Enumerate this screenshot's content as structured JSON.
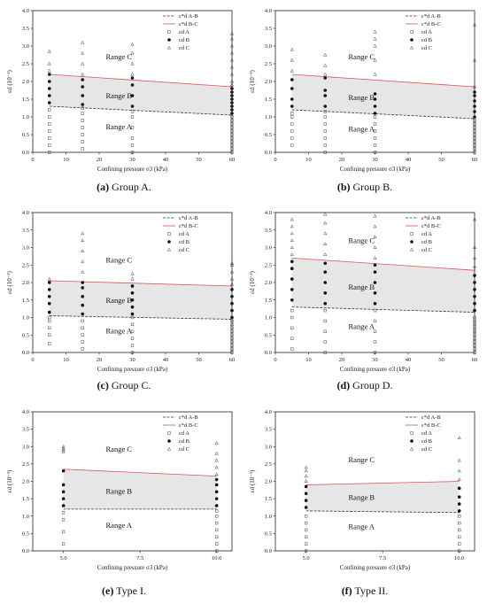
{
  "figure": {
    "panels": [
      {
        "caption_letter": "(a)",
        "caption_text": "Group A.",
        "chart_data": {
          "type": "scatter",
          "xlabel": "Confining pressure σ3 (kPa)",
          "ylabel": "εd (10⁻³)",
          "xlim": [
            0,
            60
          ],
          "ylim": [
            0,
            4.0
          ],
          "xticks": [
            "0",
            "10",
            "20",
            "30",
            "40",
            "50",
            "60"
          ],
          "yticks": [
            "0.0",
            "0.5",
            "1.0",
            "1.5",
            "2.0",
            "2.5",
            "3.0",
            "3.5",
            "4.0"
          ],
          "regions": [
            "Range A",
            "Range B",
            "Range C"
          ],
          "legend": [
            "ε*d A-B",
            "ε*d B-C",
            "εd A",
            "εd B",
            "εd C"
          ],
          "threshold_AB": {
            "x": [
              5,
              60
            ],
            "y": [
              1.3,
              1.05
            ]
          },
          "threshold_BC": {
            "x": [
              5,
              60
            ],
            "y": [
              2.2,
              1.85
            ]
          },
          "points": [
            {
              "x": 5,
              "A": [
                0.0,
                0.2,
                0.4,
                0.6,
                0.8,
                1.0,
                1.2
              ],
              "B": [
                1.4,
                1.6,
                1.8,
                2.0,
                2.2
              ],
              "C": [
                2.3,
                2.5,
                2.85
              ]
            },
            {
              "x": 15,
              "A": [
                0.1,
                0.3,
                0.5,
                0.7,
                0.9,
                1.1,
                1.25
              ],
              "B": [
                1.35,
                1.6,
                1.85,
                2.05
              ],
              "C": [
                2.2,
                2.5,
                2.8,
                3.1
              ]
            },
            {
              "x": 30,
              "A": [
                0.0,
                0.2,
                0.4,
                0.7,
                1.0,
                1.15
              ],
              "B": [
                1.3,
                1.6,
                1.9,
                2.1
              ],
              "C": [
                2.2,
                2.5,
                2.8,
                3.05
              ]
            },
            {
              "x": 60,
              "A": [
                0.0,
                0.1,
                0.2,
                0.3,
                0.4,
                0.5,
                0.6,
                0.7,
                0.8,
                0.9,
                1.0
              ],
              "B": [
                1.1,
                1.2,
                1.3,
                1.4,
                1.5,
                1.6,
                1.7,
                1.8
              ],
              "C": [
                1.9,
                2.0,
                2.2,
                2.4,
                2.6,
                2.8,
                3.0,
                3.2,
                3.35
              ]
            }
          ]
        }
      },
      {
        "caption_letter": "(b)",
        "caption_text": "Group B.",
        "chart_data": {
          "type": "scatter",
          "xlabel": "Confining pressure σ3 (kPa)",
          "ylabel": "εd (10⁻³)",
          "xlim": [
            0,
            60
          ],
          "ylim": [
            0,
            4.0
          ],
          "xticks": [
            "0",
            "10",
            "20",
            "30",
            "40",
            "50",
            "60"
          ],
          "yticks": [
            "0.0",
            "0.5",
            "1.0",
            "1.5",
            "2.0",
            "2.5",
            "3.0",
            "3.5",
            "4.0"
          ],
          "regions": [
            "Range A",
            "Range B",
            "Range C"
          ],
          "legend": [
            "ε*d A-B",
            "ε*d B-C",
            "εd A",
            "εd B",
            "εd C"
          ],
          "threshold_AB": {
            "x": [
              5,
              60
            ],
            "y": [
              1.2,
              0.95
            ]
          },
          "threshold_BC": {
            "x": [
              5,
              60
            ],
            "y": [
              2.2,
              1.85
            ]
          },
          "points": [
            {
              "x": 5,
              "A": [
                0.2,
                0.4,
                0.6,
                0.8,
                1.0,
                1.1
              ],
              "B": [
                1.3,
                1.5,
                1.8,
                2.05
              ],
              "C": [
                2.3,
                2.6,
                2.9
              ]
            },
            {
              "x": 15,
              "A": [
                0.0,
                0.2,
                0.4,
                0.6,
                0.8,
                1.0,
                1.15
              ],
              "B": [
                1.3,
                1.6,
                1.75,
                2.1
              ],
              "C": [
                2.2,
                2.45,
                2.75
              ]
            },
            {
              "x": 30,
              "A": [
                0.0,
                0.2,
                0.4,
                0.6,
                0.8,
                1.0
              ],
              "B": [
                1.1,
                1.3,
                1.5,
                1.65
              ],
              "C": [
                2.2,
                2.6,
                3.0,
                3.2,
                3.4
              ]
            },
            {
              "x": 60,
              "A": [
                0.0,
                0.1,
                0.2,
                0.3,
                0.4,
                0.5,
                0.6,
                0.7,
                0.8,
                0.9
              ],
              "B": [
                1.0,
                1.15,
                1.3,
                1.45,
                1.6,
                1.7
              ],
              "C": [
                1.85,
                2.6,
                3.6
              ]
            }
          ]
        }
      },
      {
        "caption_letter": "(c)",
        "caption_text": "Group C.",
        "chart_data": {
          "type": "scatter",
          "xlabel": "Confining pressure σ3 (kPa)",
          "ylabel": "εd (10⁻³)",
          "xlim": [
            0,
            60
          ],
          "ylim": [
            0,
            4.0
          ],
          "xticks": [
            "0",
            "10",
            "20",
            "30",
            "40",
            "50",
            "60"
          ],
          "yticks": [
            "0.0",
            "0.5",
            "1.0",
            "1.5",
            "2.0",
            "2.5",
            "3.0",
            "3.5",
            "4.0"
          ],
          "regions": [
            "Range A",
            "Range B",
            "Range C"
          ],
          "legend": [
            "ε*d A-B",
            "ε*d B-C",
            "εd A",
            "εd B",
            "εd C"
          ],
          "threshold_AB": {
            "x": [
              5,
              60
            ],
            "y": [
              1.05,
              0.95
            ]
          },
          "threshold_BC": {
            "x": [
              5,
              60
            ],
            "y": [
              2.05,
              1.9
            ]
          },
          "points": [
            {
              "x": 5,
              "A": [
                0.25,
                0.5,
                0.7,
                0.9,
                1.0
              ],
              "B": [
                1.15,
                1.4,
                1.6,
                1.8,
                2.0
              ],
              "C": [
                2.1
              ]
            },
            {
              "x": 15,
              "A": [
                0.1,
                0.3,
                0.5,
                0.7,
                0.9
              ],
              "B": [
                1.1,
                1.35,
                1.6,
                1.85,
                2.0
              ],
              "C": [
                2.3,
                2.6,
                2.9,
                3.2,
                3.4
              ]
            },
            {
              "x": 30,
              "A": [
                0.0,
                0.2,
                0.4,
                0.6,
                0.8,
                1.0
              ],
              "B": [
                1.1,
                1.3,
                1.5,
                1.7,
                1.9
              ],
              "C": [
                2.1,
                2.25
              ]
            },
            {
              "x": 60,
              "A": [
                0.0,
                0.1,
                0.2,
                0.3,
                0.4,
                0.5,
                0.6,
                0.7,
                0.8,
                0.9
              ],
              "B": [
                1.0,
                1.2,
                1.4,
                1.6,
                1.8
              ],
              "C": [
                1.95,
                2.1,
                2.3,
                2.5,
                2.55
              ]
            }
          ]
        }
      },
      {
        "caption_letter": "(d)",
        "caption_text": "Group D.",
        "chart_data": {
          "type": "scatter",
          "xlabel": "Confining pressure σ3 (kPa)",
          "ylabel": "εd (10⁻³)",
          "xlim": [
            0,
            60
          ],
          "ylim": [
            0,
            4.0
          ],
          "xticks": [
            "0",
            "10",
            "20",
            "30",
            "40",
            "50",
            "60"
          ],
          "yticks": [
            "0.0",
            "0.5",
            "1.0",
            "1.5",
            "2.0",
            "2.5",
            "3.0",
            "3.5",
            "4.0"
          ],
          "regions": [
            "Range A",
            "Range B",
            "Range C"
          ],
          "legend": [
            "ε*d A-B",
            "ε*d B-C",
            "εd A",
            "εd B",
            "εd C"
          ],
          "threshold_AB": {
            "x": [
              5,
              60
            ],
            "y": [
              1.3,
              1.15
            ]
          },
          "threshold_BC": {
            "x": [
              5,
              60
            ],
            "y": [
              2.7,
              2.35
            ]
          },
          "points": [
            {
              "x": 5,
              "A": [
                0.1,
                0.4,
                0.7,
                1.0,
                1.2
              ],
              "B": [
                1.5,
                1.8,
                2.1,
                2.4,
                2.6
              ],
              "C": [
                2.8,
                3.0,
                3.2,
                3.4,
                3.6,
                3.8
              ]
            },
            {
              "x": 15,
              "A": [
                0.0,
                0.3,
                0.6,
                0.9,
                1.2
              ],
              "B": [
                1.4,
                1.7,
                2.0,
                2.3,
                2.55
              ],
              "C": [
                2.8,
                3.1,
                3.4,
                3.7,
                3.95
              ]
            },
            {
              "x": 30,
              "A": [
                0.0,
                0.3,
                0.6,
                0.9,
                1.2
              ],
              "B": [
                1.4,
                1.7,
                2.0,
                2.3,
                2.5
              ],
              "C": [
                2.7,
                3.0,
                3.3,
                3.6,
                3.9
              ]
            },
            {
              "x": 60,
              "A": [
                0.0,
                0.1,
                0.2,
                0.3,
                0.4,
                0.5,
                0.6,
                0.7,
                0.8,
                0.9,
                1.0
              ],
              "B": [
                1.2,
                1.4,
                1.6,
                1.8,
                2.0,
                2.2
              ],
              "C": [
                2.45,
                2.7,
                3.0,
                3.8
              ]
            }
          ]
        }
      },
      {
        "caption_letter": "(e)",
        "caption_text": "Type I.",
        "chart_data": {
          "type": "scatter",
          "xlabel": "Confining pressure σ3 (kPa)",
          "ylabel": "εd (10⁻³)",
          "xlim": [
            4.0,
            10.5
          ],
          "ylim": [
            0,
            4.0
          ],
          "xticks_values": [
            5.0,
            7.5,
            10.0
          ],
          "xticks": [
            "5.0",
            "7.5",
            "10.0"
          ],
          "yticks": [
            "0.0",
            "0.5",
            "1.0",
            "1.5",
            "2.0",
            "2.5",
            "3.0",
            "3.5",
            "4.0"
          ],
          "regions": [
            "Range A",
            "Range B",
            "Range C"
          ],
          "legend": [
            "ε*d A-B",
            "ε*d B-C",
            "εd A",
            "εd B",
            "εd C"
          ],
          "threshold_AB": {
            "x": [
              5,
              10
            ],
            "y": [
              1.2,
              1.2
            ]
          },
          "threshold_BC": {
            "x": [
              5,
              10
            ],
            "y": [
              2.35,
              2.15
            ]
          },
          "points": [
            {
              "x": 5,
              "A": [
                0.2,
                0.55,
                0.9,
                1.1
              ],
              "B": [
                1.3,
                1.5,
                1.7,
                1.9,
                2.3
              ],
              "C": [
                2.85,
                2.9,
                2.95,
                3.0
              ]
            },
            {
              "x": 10,
              "A": [
                0.0,
                0.2,
                0.4,
                0.6,
                0.8,
                1.0,
                1.15
              ],
              "B": [
                1.3,
                1.5,
                1.7,
                1.9,
                2.05
              ],
              "C": [
                2.2,
                2.4,
                2.6,
                2.8,
                3.1
              ]
            }
          ]
        }
      },
      {
        "caption_letter": "(f)",
        "caption_text": "Type II.",
        "chart_data": {
          "type": "scatter",
          "xlabel": "Confining pressure σ3 (kPa)",
          "ylabel": "εd (10⁻³)",
          "xlim": [
            4.0,
            10.5
          ],
          "ylim": [
            0,
            4.0
          ],
          "xticks_values": [
            5.0,
            7.5,
            10.0
          ],
          "xticks": [
            "5.0",
            "7.5",
            "10.0"
          ],
          "yticks": [
            "0.0",
            "0.5",
            "1.0",
            "1.5",
            "2.0",
            "2.5",
            "3.0",
            "3.5",
            "4.0"
          ],
          "regions": [
            "Range A",
            "Range B",
            "Range C"
          ],
          "legend": [
            "ε*d A-B",
            "ε*d B-C",
            "εd A",
            "εd B",
            "εd C"
          ],
          "threshold_AB": {
            "x": [
              5,
              10
            ],
            "y": [
              1.15,
              1.1
            ]
          },
          "threshold_BC": {
            "x": [
              5,
              10
            ],
            "y": [
              1.9,
              2.0
            ]
          },
          "points": [
            {
              "x": 5,
              "A": [
                0.0,
                0.2,
                0.4,
                0.6,
                0.8,
                1.0
              ],
              "B": [
                1.25,
                1.45,
                1.65,
                1.85
              ],
              "C": [
                2.0,
                2.15,
                2.3,
                2.4
              ]
            },
            {
              "x": 10,
              "A": [
                0.0,
                0.2,
                0.4,
                0.6,
                0.8,
                1.0
              ],
              "B": [
                1.15,
                1.35,
                1.55,
                1.8
              ],
              "C": [
                2.05,
                2.3,
                2.6,
                3.25
              ]
            }
          ]
        }
      }
    ]
  }
}
